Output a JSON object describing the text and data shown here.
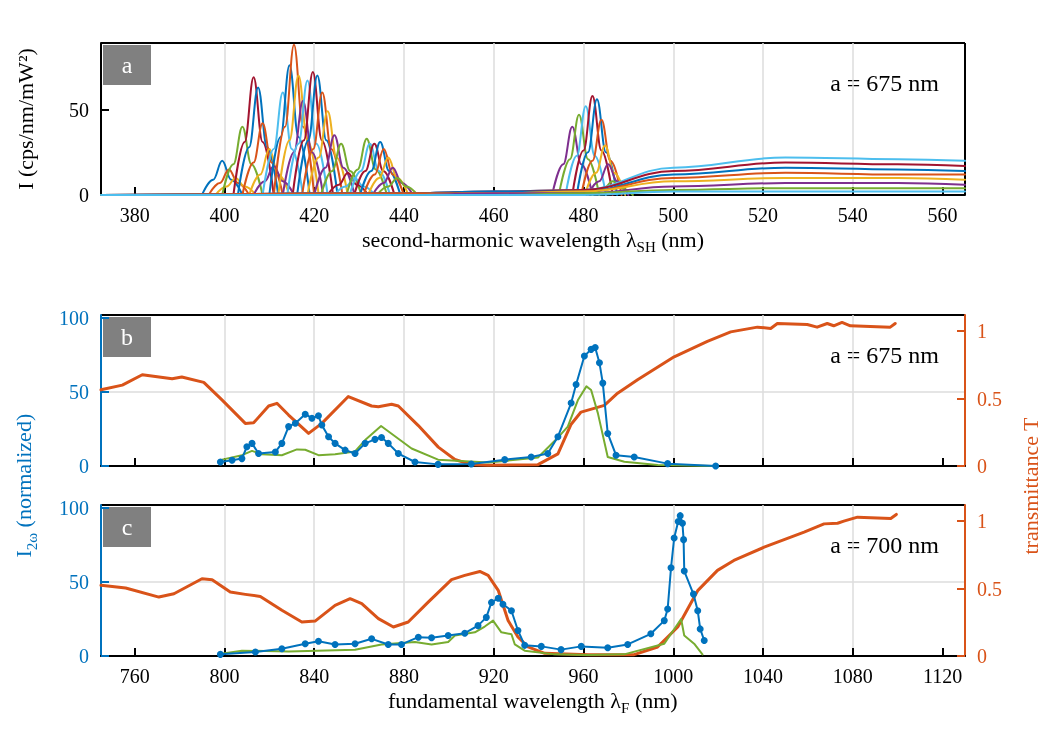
{
  "chart_data": [
    {
      "type": "line",
      "xlabel": "second-harmonic wavelength λ$_{SH}$ (nm)",
      "ylabel": "I (cps/nm/mW²)",
      "annotations": [
        "a",
        "a = 675 nm"
      ],
      "xlim": [
        372.5,
        565
      ],
      "xticks": [
        380,
        400,
        420,
        440,
        460,
        480,
        500,
        520,
        540,
        560
      ],
      "ylim": [
        0,
        89
      ],
      "yticks": [
        0,
        50
      ],
      "grid": true,
      "marker": "none",
      "line_style": "solid",
      "series": [
        {
          "color": "#0072bd",
          "x": [
            395,
            397.5,
            399.5,
            401.5,
            404
          ],
          "values": [
            0,
            9,
            20,
            9,
            0
          ]
        },
        {
          "color": "#d95319",
          "x": [
            396.5,
            399,
            401,
            403,
            405.5
          ],
          "values": [
            0,
            7,
            15,
            7,
            0
          ]
        },
        {
          "color": "#edb120",
          "x": [
            398,
            400.5,
            402.5,
            404.5,
            407
          ],
          "values": [
            0,
            5,
            10,
            5,
            0
          ]
        },
        {
          "color": "#77ac30",
          "x": [
            399.5,
            402,
            404,
            406,
            408.5
          ],
          "values": [
            0,
            18,
            40,
            18,
            0
          ]
        },
        {
          "color": "#a2142f",
          "x": [
            402,
            404.5,
            406.5,
            408.5,
            411
          ],
          "values": [
            0,
            31,
            69,
            31,
            0
          ]
        },
        {
          "color": "#0072bd",
          "x": [
            403,
            405.5,
            407.5,
            409.5,
            412
          ],
          "values": [
            0,
            28,
            63,
            28,
            0
          ]
        },
        {
          "color": "#d95319",
          "x": [
            404,
            406.5,
            408.5,
            410.5,
            413
          ],
          "values": [
            0,
            19,
            42,
            19,
            0
          ]
        },
        {
          "color": "#edb120",
          "x": [
            405.5,
            408,
            410,
            412,
            414.5
          ],
          "values": [
            0,
            12,
            27,
            12,
            0
          ]
        },
        {
          "color": "#7e2f8e",
          "x": [
            406.5,
            409,
            411,
            413,
            415.5
          ],
          "values": [
            0,
            8,
            17,
            8,
            0
          ]
        },
        {
          "color": "#4dbeee",
          "x": [
            408.5,
            411,
            413,
            415,
            417.5
          ],
          "values": [
            0,
            27,
            60,
            27,
            0
          ]
        },
        {
          "color": "#0072bd",
          "x": [
            410,
            412.5,
            414.5,
            416.5,
            419
          ],
          "values": [
            0,
            34,
            76,
            34,
            0
          ]
        },
        {
          "color": "#d95319",
          "x": [
            411,
            413.5,
            415.5,
            417.5,
            420
          ],
          "values": [
            0,
            40,
            88,
            40,
            0
          ]
        },
        {
          "color": "#edb120",
          "x": [
            412,
            414.5,
            416.5,
            418.5,
            421
          ],
          "values": [
            0,
            32,
            70,
            32,
            0
          ]
        },
        {
          "color": "#7e2f8e",
          "x": [
            413,
            415.5,
            417.5,
            419.5,
            422
          ],
          "values": [
            0,
            25,
            55,
            25,
            0
          ]
        },
        {
          "color": "#4dbeee",
          "x": [
            414,
            416.5,
            418.5,
            420.5,
            423
          ],
          "values": [
            0,
            30,
            67,
            30,
            0
          ]
        },
        {
          "color": "#a2142f",
          "x": [
            415.2,
            417.7,
            419.7,
            421.7,
            424.2
          ],
          "values": [
            0,
            32,
            72,
            32,
            0
          ]
        },
        {
          "color": "#0072bd",
          "x": [
            416.2,
            418.7,
            420.7,
            422.7,
            425.2
          ],
          "values": [
            0,
            32,
            70,
            32,
            0
          ]
        },
        {
          "color": "#d95319",
          "x": [
            417.3,
            419.8,
            421.8,
            423.8,
            426.3
          ],
          "values": [
            0,
            27,
            60,
            27,
            0
          ]
        },
        {
          "color": "#edb120",
          "x": [
            418.5,
            421,
            423,
            425,
            427.5
          ],
          "values": [
            0,
            22,
            49,
            22,
            0
          ]
        },
        {
          "color": "#7e2f8e",
          "x": [
            420,
            422.5,
            424.5,
            426.5,
            429
          ],
          "values": [
            0,
            16,
            35,
            16,
            0
          ]
        },
        {
          "color": "#77ac30",
          "x": [
            421.5,
            424,
            426,
            428,
            430.5
          ],
          "values": [
            0,
            14,
            30,
            14,
            0
          ]
        },
        {
          "color": "#a2142f",
          "x": [
            423,
            425.5,
            427.5,
            429.5,
            432
          ],
          "values": [
            0,
            6,
            13,
            6,
            0
          ]
        },
        {
          "color": "#4dbeee",
          "x": [
            424.5,
            427,
            429,
            431,
            433.5
          ],
          "values": [
            0,
            5,
            10,
            5,
            0
          ]
        },
        {
          "color": "#77ac30",
          "x": [
            427.2,
            429.7,
            431.7,
            433.7,
            436.2
          ],
          "values": [
            0,
            15,
            33,
            15,
            0
          ]
        },
        {
          "color": "#4dbeee",
          "x": [
            427.9,
            430.4,
            432.4,
            434.4,
            436.9
          ],
          "values": [
            0,
            14,
            30,
            14,
            0
          ]
        },
        {
          "color": "#a2142f",
          "x": [
            428.9,
            431.4,
            433.4,
            435.4,
            437.9
          ],
          "values": [
            0,
            14,
            30,
            14,
            0
          ]
        },
        {
          "color": "#0072bd",
          "x": [
            430.2,
            432.7,
            434.7,
            436.7,
            439.2
          ],
          "values": [
            0,
            14,
            31,
            14,
            0
          ]
        },
        {
          "color": "#d95319",
          "x": [
            431,
            433.5,
            435.5,
            437.5,
            440
          ],
          "values": [
            0,
            12,
            27,
            12,
            0
          ]
        },
        {
          "color": "#edb120",
          "x": [
            432,
            434.5,
            436.5,
            438.5,
            441
          ],
          "values": [
            0,
            10,
            22,
            10,
            0
          ]
        },
        {
          "color": "#7e2f8e",
          "x": [
            433,
            435.5,
            437.5,
            439.5,
            442
          ],
          "values": [
            0,
            7,
            16,
            7,
            0
          ]
        },
        {
          "color": "#77ac30",
          "x": [
            434,
            436.5,
            438.5,
            440.5,
            443
          ],
          "values": [
            0,
            5,
            10,
            5,
            0
          ]
        },
        {
          "color": "#7e2f8e",
          "x": [
            473,
            475.5,
            477.5,
            479.5,
            482
          ],
          "values": [
            0,
            18,
            40,
            18,
            0
          ]
        },
        {
          "color": "#77ac30",
          "x": [
            474.5,
            477,
            479,
            481,
            483.5
          ],
          "values": [
            0,
            21,
            47,
            21,
            0
          ]
        },
        {
          "color": "#4dbeee",
          "x": [
            476,
            478.5,
            480.5,
            482.5,
            485
          ],
          "values": [
            0,
            23,
            52,
            23,
            0
          ]
        },
        {
          "color": "#a2142f",
          "x": [
            477.5,
            480,
            482,
            484,
            486.5
          ],
          "values": [
            0,
            26,
            58,
            26,
            0
          ]
        },
        {
          "color": "#0072bd",
          "x": [
            478.5,
            481,
            483,
            485,
            487.5
          ],
          "values": [
            0,
            25,
            56,
            25,
            0
          ]
        },
        {
          "color": "#d95319",
          "x": [
            479.5,
            482,
            484,
            486,
            488.5
          ],
          "values": [
            0,
            20,
            44,
            20,
            0
          ]
        },
        {
          "color": "#edb120",
          "x": [
            480.3,
            482.8,
            484.8,
            486.8,
            489.3
          ],
          "values": [
            0,
            13,
            29,
            13,
            0
          ]
        },
        {
          "color": "#7e2f8e",
          "x": [
            481,
            483.5,
            485.5,
            487.5,
            490
          ],
          "values": [
            0,
            8,
            18,
            8,
            0
          ]
        },
        {
          "color": "#77ac30",
          "x": [
            482,
            484.5,
            486.5,
            488.5,
            491
          ],
          "values": [
            0,
            4,
            8,
            4,
            0
          ]
        },
        {
          "color": "#4dbeee",
          "x": [
            372.5,
            440,
            460,
            480,
            500,
            525,
            550,
            565
          ],
          "values": [
            0,
            1,
            2,
            3,
            16,
            22,
            21,
            20
          ]
        },
        {
          "color": "#a2142f",
          "x": [
            372.5,
            440,
            460,
            480,
            500,
            525,
            550,
            565
          ],
          "values": [
            0,
            1,
            2,
            3,
            14,
            19,
            18,
            17
          ]
        },
        {
          "color": "#0072bd",
          "x": [
            372.5,
            440,
            460,
            480,
            500,
            525,
            550,
            565
          ],
          "values": [
            0,
            1,
            2,
            2,
            12,
            16,
            15,
            14
          ]
        },
        {
          "color": "#d95319",
          "x": [
            372.5,
            440,
            460,
            480,
            500,
            525,
            550,
            565
          ],
          "values": [
            0,
            1,
            1,
            2,
            10,
            13,
            12,
            12
          ]
        },
        {
          "color": "#edb120",
          "x": [
            372.5,
            440,
            460,
            480,
            500,
            525,
            550,
            565
          ],
          "values": [
            0,
            0,
            1,
            2,
            8,
            10,
            10,
            9
          ]
        },
        {
          "color": "#7e2f8e",
          "x": [
            372.5,
            440,
            460,
            480,
            500,
            525,
            550,
            565
          ],
          "values": [
            0,
            0,
            1,
            1,
            5,
            7,
            7,
            6
          ]
        },
        {
          "color": "#77ac30",
          "x": [
            372.5,
            440,
            460,
            480,
            500,
            525,
            550,
            565
          ],
          "values": [
            0,
            0,
            0,
            1,
            3,
            4,
            4,
            4
          ]
        },
        {
          "color": "#4dbeee",
          "x": [
            372.5,
            440,
            460,
            480,
            500,
            525,
            550,
            565
          ],
          "values": [
            0,
            0,
            0,
            0,
            2,
            2,
            2,
            2
          ]
        }
      ]
    },
    {
      "type": "line",
      "annotations": [
        "b",
        "a = 675 nm"
      ],
      "tick_labels": "y",
      "xlim": [
        745,
        1130
      ],
      "xticks": [
        760,
        800,
        840,
        880,
        920,
        960,
        1000,
        1040,
        1080,
        1120
      ],
      "ylim": [
        0,
        102
      ],
      "yticks": [
        0,
        50,
        100
      ],
      "y2lim": [
        0,
        1.12
      ],
      "y2ticks": [
        0,
        0.5,
        1
      ],
      "grid": true,
      "marker": "none",
      "line_style": "solid",
      "series": [
        {
          "color": "#d95319",
          "axis": "y2",
          "x": [
            745,
            754.5,
            763.4,
            776.7,
            781,
            790.8,
            798.9,
            809.3,
            813,
            819.7,
            823.4,
            828.6,
            837.5,
            843.4,
            855.2,
            865.6,
            868.6,
            874.5,
            877.5,
            886.4,
            895.3,
            902.7,
            910,
            917.5,
            939.7,
            948.6,
            954.5,
            958.9,
            969.3,
            975.2,
            984.1,
            1000.4,
            1015.2,
            1025.6,
            1037.5,
            1043.4,
            1046.4,
            1059.7,
            1064.1,
            1068.6,
            1071.5,
            1075.2,
            1078.9,
            1096.7,
            1098.9
          ],
          "values": [
            0.565,
            0.6,
            0.677,
            0.647,
            0.66,
            0.62,
            0.49,
            0.316,
            0.32,
            0.445,
            0.465,
            0.378,
            0.242,
            0.316,
            0.515,
            0.445,
            0.44,
            0.458,
            0.445,
            0.3,
            0.14,
            0.048,
            0.01,
            0.005,
            0.01,
            0.09,
            0.31,
            0.4,
            0.45,
            0.54,
            0.64,
            0.81,
            0.925,
            0.995,
            1.03,
            1.02,
            1.057,
            1.05,
            1.03,
            1.057,
            1.04,
            1.065,
            1.04,
            1.03,
            1.057
          ]
        },
        {
          "color": "#77ac30",
          "x": [
            799,
            807.8,
            812.3,
            816.7,
            825.6,
            832.3,
            836,
            841.9,
            849.3,
            858.2,
            862.7,
            869.8,
            883.4,
            895.2,
            917.5,
            939.7,
            949,
            953,
            957.6,
            961.3,
            963.4,
            966.4,
            970.8,
            978.2,
            993.1,
            1018.1
          ],
          "values": [
            4.3,
            7.3,
            10.2,
            8,
            7.3,
            11.2,
            11,
            7.3,
            8,
            9.8,
            17.5,
            27,
            11.8,
            4.3,
            2.3,
            5.7,
            19.8,
            26.6,
            44.8,
            53.8,
            51.3,
            35.7,
            6.1,
            2.9,
            0.7,
            0
          ]
        },
        {
          "color": "#0072bd",
          "marker": "circle",
          "x": [
            798.2,
            803.4,
            807.8,
            810,
            812.3,
            815.2,
            822.7,
            825.6,
            828.6,
            831.6,
            836,
            839,
            841.9,
            843.4,
            846.4,
            849.3,
            853.8,
            858.2,
            862.7,
            867.1,
            870,
            873,
            877.5,
            884.9,
            895.2,
            910,
            924.9,
            936.7,
            944.1,
            948.6,
            954.5,
            956.7,
            960.4,
            963.4,
            965.2,
            967.1,
            968.6,
            970.8,
            974.5,
            982.6,
            997.5,
            1018.9
          ],
          "values": [
            2.7,
            3.9,
            5,
            13,
            15.3,
            8.4,
            9.5,
            15.3,
            26.6,
            28.9,
            35,
            32.3,
            33.9,
            27.7,
            19.8,
            15.3,
            10.7,
            8.4,
            15.3,
            18,
            19.3,
            15.3,
            8.4,
            2.7,
            1.1,
            1.4,
            4.3,
            6.1,
            8.4,
            19.8,
            42.5,
            55,
            74.3,
            78.8,
            80,
            69.8,
            56,
            22,
            7.3,
            6.1,
            1.6,
            0
          ]
        }
      ]
    },
    {
      "type": "line",
      "xlabel": "fundamental wavelength λ$_{F}$ (nm)",
      "ylabel": "I$_{2ω}$ (normalized)",
      "y2label": "transmittance T",
      "annotations": [
        "c",
        "a = 700 nm"
      ],
      "xlim": [
        745,
        1130
      ],
      "xticks": [
        760,
        800,
        840,
        880,
        920,
        960,
        1000,
        1040,
        1080,
        1120
      ],
      "ylim": [
        0,
        102
      ],
      "yticks": [
        0,
        50,
        100
      ],
      "y2lim": [
        0,
        1.12
      ],
      "y2ticks": [
        0,
        0.5,
        1
      ],
      "grid": true,
      "marker": "none",
      "line_style": "solid",
      "series": [
        {
          "color": "#d95319",
          "axis": "y2",
          "x": [
            745,
            756,
            770.8,
            777.5,
            790,
            794.5,
            802.6,
            809.3,
            816,
            825.6,
            834.5,
            840.4,
            849.3,
            856,
            861.2,
            868.6,
            875.3,
            881.9,
            890.8,
            901.2,
            907.1,
            913.8,
            917.5,
            922,
            926.4,
            930.8,
            935.3,
            942.7,
            962,
            982.6,
            993,
            1002,
            1011,
            1019.7,
            1027,
            1040.5,
            1058.3,
            1067.2,
            1073.2,
            1076,
            1082.1,
            1096.9,
            1099.4
          ],
          "values": [
            0.524,
            0.504,
            0.437,
            0.462,
            0.573,
            0.566,
            0.474,
            0.457,
            0.442,
            0.339,
            0.252,
            0.259,
            0.376,
            0.425,
            0.388,
            0.277,
            0.215,
            0.252,
            0.4,
            0.566,
            0.598,
            0.627,
            0.598,
            0.487,
            0.264,
            0.141,
            0.067,
            0.02,
            0.01,
            0.01,
            0.067,
            0.215,
            0.487,
            0.635,
            0.709,
            0.807,
            0.919,
            0.98,
            0.985,
            1,
            1.03,
            1.02,
            1.05
          ]
        },
        {
          "color": "#77ac30",
          "x": [
            798.7,
            807.8,
            828.6,
            858.2,
            870,
            884.9,
            892.3,
            899.7,
            902.7,
            911.6,
            916,
            919.7,
            923.4,
            927.9,
            929.4,
            933.8,
            947.1,
            962,
            978.1,
            996,
            1003.5,
            1004.9,
            1009.3,
            1013
          ],
          "values": [
            1.6,
            3.6,
            3.1,
            4.2,
            7.8,
            9.4,
            7.8,
            9.4,
            13.8,
            16,
            19.9,
            23.9,
            16,
            14.7,
            7.8,
            3.6,
            1.1,
            0.7,
            1.1,
            8.3,
            25,
            13.8,
            8.3,
            1.1
          ]
        },
        {
          "color": "#0072bd",
          "marker": "circle",
          "x": [
            798.2,
            813.8,
            825.6,
            836,
            841.9,
            849.3,
            858.2,
            865.6,
            873,
            878.9,
            886.4,
            892.3,
            899.7,
            907.1,
            913,
            916.7,
            919,
            922,
            924.1,
            927.9,
            930.8,
            933.8,
            941.2,
            950,
            959,
            970.8,
            979.7,
            990,
            996,
            997.5,
            999,
            1000.4,
            1002.2,
            1003.1,
            1004.1,
            1004.6,
            1004.9,
            1009,
            1010.9,
            1012,
            1013.8
          ],
          "values": [
            1.1,
            2.7,
            4.9,
            8.3,
            10,
            7.8,
            8.3,
            11.6,
            7.8,
            7.8,
            12.7,
            12.3,
            13.8,
            15.4,
            20.5,
            26.1,
            36.2,
            39,
            35,
            30.6,
            17.2,
            7.2,
            6.5,
            4.3,
            6.5,
            5.6,
            7.8,
            15,
            23.9,
            31.7,
            59.6,
            79.7,
            90.8,
            94.8,
            89.7,
            78.6,
            57.4,
            41.8,
            30.6,
            18.3,
            10.5
          ]
        }
      ]
    }
  ]
}
